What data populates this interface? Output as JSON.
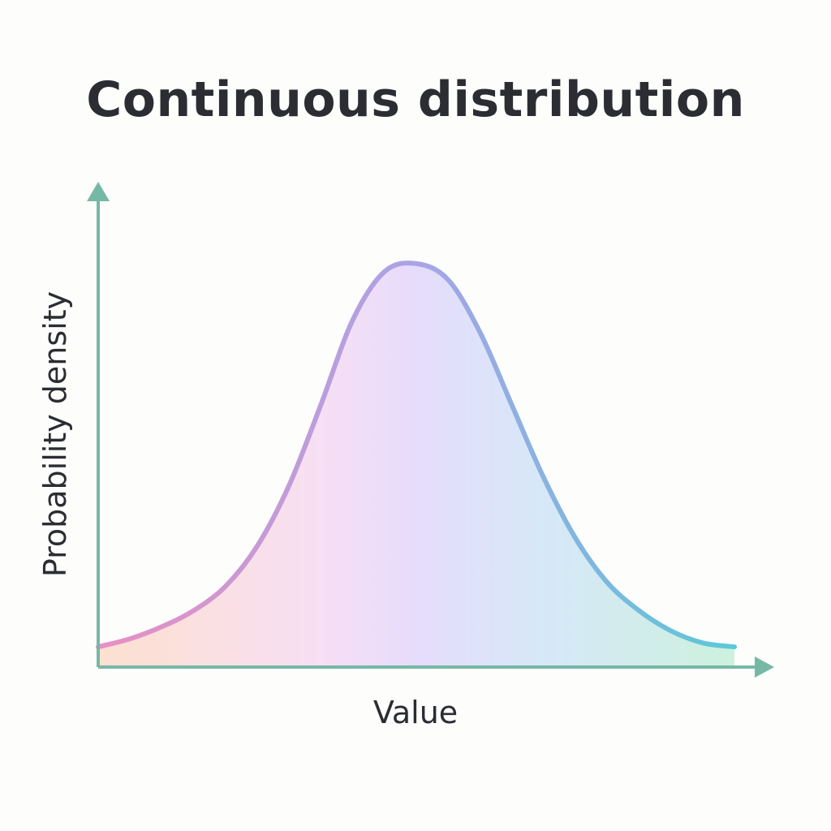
{
  "chart_data": {
    "type": "area",
    "title": "Continuous distribution",
    "xlabel": "Value",
    "ylabel": "Probability density",
    "grid": false,
    "legend": false,
    "distribution_shape": "bell",
    "x": [
      0,
      0.5,
      1,
      1.5,
      2,
      2.5,
      3,
      3.5,
      4,
      4.5,
      5,
      5.5,
      6,
      6.5,
      7,
      7.5,
      8,
      8.5,
      9,
      9.5,
      10
    ],
    "y": [
      0.05,
      0.07,
      0.1,
      0.14,
      0.2,
      0.3,
      0.45,
      0.65,
      0.86,
      0.98,
      1.0,
      0.96,
      0.83,
      0.65,
      0.47,
      0.32,
      0.21,
      0.14,
      0.09,
      0.06,
      0.05
    ],
    "xlim": [
      0,
      10
    ],
    "ylim": [
      0,
      1.05
    ],
    "colors": {
      "axis": "#76b8a6",
      "line_start": "#e88fc4",
      "line_mid": "#a8a4e6",
      "line_end": "#5cc8d8",
      "fill_left": "#fde0cf",
      "fill_mid": "#e6dcfb",
      "fill_right": "#cdf1de"
    }
  }
}
